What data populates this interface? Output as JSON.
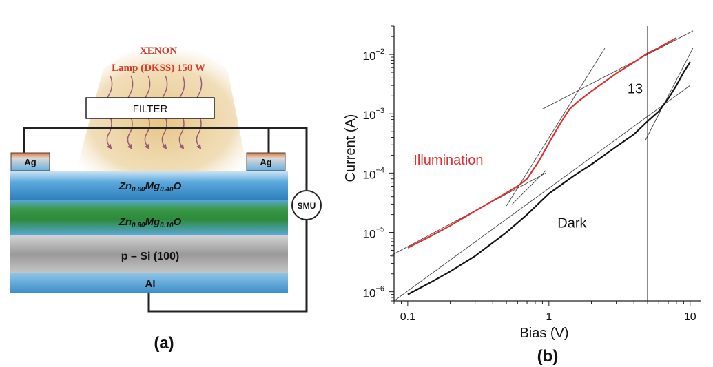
{
  "panel_a": {
    "lamp_line1": "XENON",
    "lamp_line2": "Lamp (DKSS) 150 W",
    "filter_label": "FILTER",
    "contact_left": "Ag",
    "contact_right": "Ag",
    "smu_label": "SMU",
    "layers": [
      {
        "label": "Zn",
        "sub1": "0.60",
        "mid": "Mg",
        "sub2": "0.40",
        "tail": "O"
      },
      {
        "label": "Zn",
        "sub1": "0.90",
        "mid": "Mg",
        "sub2": "0.10",
        "tail": "O"
      },
      {
        "label": "p – Si (100)"
      },
      {
        "label": "Al"
      }
    ],
    "caption": "(a)"
  },
  "panel_b": {
    "caption": "(b)"
  },
  "colors": {
    "illumination": "#e03030",
    "dark": "#111111",
    "lamp_text": "#d63a2a",
    "glow": "#e8c98a",
    "zno_top": "#6aaedc",
    "zno_green": "#2e8a3c",
    "si_gray": "#9a9a9a",
    "al_blue": "#5aa6d6"
  },
  "chart_data": {
    "type": "line",
    "xlabel": "Bias (V)",
    "ylabel": "Current (A)",
    "xscale": "log",
    "yscale": "log",
    "xlim": [
      0.08,
      12
    ],
    "ylim": [
      7e-07,
      0.03
    ],
    "xticks": [
      {
        "value": 0.1,
        "label": "0.1"
      },
      {
        "value": 1,
        "label": "1"
      },
      {
        "value": 10,
        "label": "10"
      }
    ],
    "yticks": [
      {
        "value": 1e-06,
        "base": "10",
        "exp": "−6"
      },
      {
        "value": 1e-05,
        "base": "10",
        "exp": "−5"
      },
      {
        "value": 0.0001,
        "base": "10",
        "exp": "−4"
      },
      {
        "value": 0.001,
        "base": "10",
        "exp": "−3"
      },
      {
        "value": 0.01,
        "base": "10",
        "exp": "−2"
      }
    ],
    "series": [
      {
        "name": "Illumination",
        "color": "#e03030",
        "x": [
          0.1,
          0.15,
          0.2,
          0.3,
          0.45,
          0.6,
          0.7,
          0.85,
          1.0,
          1.2,
          1.4,
          1.6,
          2.0,
          3.0,
          4.0,
          5.0,
          6.0,
          8.0
        ],
        "y": [
          5.5e-06,
          9e-06,
          1.3e-05,
          2.3e-05,
          4e-05,
          6e-05,
          8e-05,
          0.00016,
          0.00032,
          0.00068,
          0.0012,
          0.0016,
          0.0024,
          0.0048,
          0.0074,
          0.0105,
          0.013,
          0.019
        ]
      },
      {
        "name": "Dark",
        "color": "#111111",
        "x": [
          0.1,
          0.15,
          0.2,
          0.3,
          0.5,
          0.7,
          1.0,
          1.5,
          2.0,
          3.0,
          4.0,
          5.0,
          6.0,
          7.0,
          8.0,
          9.0,
          10.0
        ],
        "y": [
          9e-07,
          1.5e-06,
          2.2e-06,
          4e-06,
          1e-05,
          2e-05,
          4.5e-05,
          9e-05,
          0.00014,
          0.00028,
          0.00045,
          0.00075,
          0.0011,
          0.0018,
          0.003,
          0.005,
          0.0075
        ]
      }
    ],
    "fit_lines": [
      {
        "x": [
          0.075,
          0.95
        ],
        "y": [
          4e-06,
          0.0001
        ]
      },
      {
        "x": [
          0.55,
          0.95
        ],
        "y": [
          3e-05,
          0.00011
        ]
      },
      {
        "x": [
          0.5,
          2.5
        ],
        "y": [
          2.8e-05,
          0.013
        ]
      },
      {
        "x": [
          0.9,
          10.5
        ],
        "y": [
          0.0012,
          0.025
        ]
      },
      {
        "x": [
          0.08,
          10
        ],
        "y": [
          7e-07,
          0.003
        ]
      },
      {
        "x": [
          4.8,
          10.5
        ],
        "y": [
          0.00035,
          0.013
        ]
      }
    ],
    "vline": {
      "x": 5.0
    },
    "annotations": [
      {
        "text": "Illumination",
        "color": "#e03030",
        "x": 0.11,
        "y": 0.00014
      },
      {
        "text": "Dark",
        "color": "#111111",
        "x": 1.15,
        "y": 1.2e-05
      },
      {
        "text": "13",
        "color": "#111111",
        "x": 3.6,
        "y": 0.0022
      }
    ]
  }
}
